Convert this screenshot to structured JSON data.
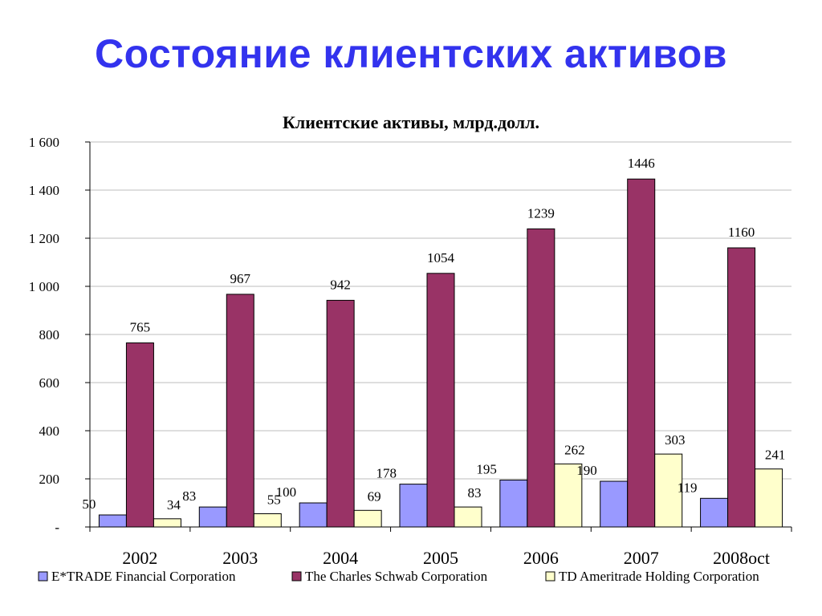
{
  "slide": {
    "title": "Состояние клиентских активов"
  },
  "chart_data": {
    "type": "bar",
    "title": "Клиентские активы, млрд.долл.",
    "categories": [
      "2002",
      "2003",
      "2004",
      "2005",
      "2006",
      "2007",
      "2008oct"
    ],
    "series": [
      {
        "name": "E*TRADE Financial Corporation",
        "color": "#9999ff",
        "values": [
          50,
          83,
          100,
          178,
          195,
          190,
          119
        ]
      },
      {
        "name": "The Charles Schwab Corporation",
        "color": "#993366",
        "values": [
          765,
          967,
          942,
          1054,
          1239,
          1446,
          1160
        ]
      },
      {
        "name": "TD Ameritrade Holding Corporation",
        "color": "#ffffcc",
        "values": [
          34,
          55,
          69,
          83,
          262,
          303,
          241
        ]
      }
    ],
    "ylim": [
      0,
      1600
    ],
    "yticks": [
      0,
      200,
      400,
      600,
      800,
      1000,
      1200,
      1400,
      1600
    ],
    "ytick_labels": [
      "-",
      "200",
      "400",
      "600",
      "800",
      "1 000",
      "1 200",
      "1 400",
      "1 600"
    ],
    "grid": true,
    "legend": "bottom"
  }
}
